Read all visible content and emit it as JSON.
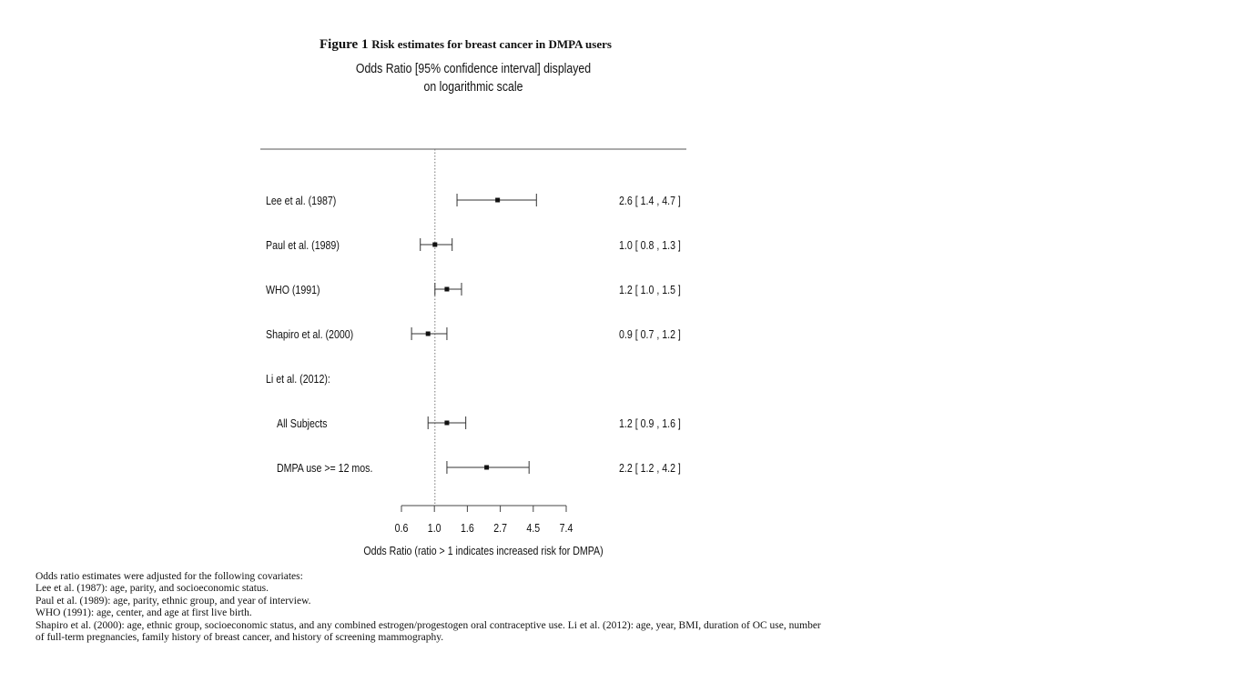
{
  "chart_data": {
    "type": "forest",
    "title_bold": "Figure 1",
    "title_rest": "Risk estimates for breast cancer in DMPA users",
    "subtitle_line1": "Odds Ratio [95% confidence interval] displayed",
    "subtitle_line2": "on logarithmic scale",
    "xlabel": "Odds Ratio (ratio > 1 indicates increased risk for DMPA)",
    "xscale": "log",
    "xlim": [
      0.6,
      7.4
    ],
    "reference_line": 1.0,
    "ticks": [
      0.6,
      1.0,
      1.6,
      2.7,
      4.5,
      7.4
    ],
    "tick_labels": [
      "0.6",
      "1.0",
      "1.6",
      "2.7",
      "4.5",
      "7.4"
    ],
    "rows": [
      {
        "label": "Lee et al. (1987)",
        "or": 2.6,
        "lo": 1.4,
        "hi": 4.7,
        "text": "2.6 [ 1.4 , 4.7 ]",
        "indent": false
      },
      {
        "label": "Paul et al. (1989)",
        "or": 1.0,
        "lo": 0.8,
        "hi": 1.3,
        "text": "1.0 [ 0.8 , 1.3 ]",
        "indent": false
      },
      {
        "label": "WHO (1991)",
        "or": 1.2,
        "lo": 1.0,
        "hi": 1.5,
        "text": "1.2 [ 1.0 , 1.5 ]",
        "indent": false
      },
      {
        "label": "Shapiro et al. (2000)",
        "or": 0.9,
        "lo": 0.7,
        "hi": 1.2,
        "text": "0.9 [ 0.7 , 1.2 ]",
        "indent": false
      },
      {
        "label": "Li et al. (2012):",
        "or": null,
        "lo": null,
        "hi": null,
        "text": "",
        "indent": false
      },
      {
        "label": "All Subjects",
        "or": 1.2,
        "lo": 0.9,
        "hi": 1.6,
        "text": "1.2 [ 0.9 , 1.6 ]",
        "indent": true
      },
      {
        "label": "DMPA use >= 12 mos.",
        "or": 2.2,
        "lo": 1.2,
        "hi": 4.2,
        "text": "2.2 [ 1.2 , 4.2 ]",
        "indent": true
      }
    ]
  },
  "notes": [
    "Odds ratio estimates were adjusted for the following covariates:",
    "Lee et al. (1987): age, parity, and socioeconomic status.",
    "Paul et al. (1989): age, parity, ethnic group, and year of interview.",
    "WHO (1991): age, center, and age at first live birth.",
    "Shapiro et al. (2000): age, ethnic group, socioeconomic status, and any combined estrogen/progestogen oral contraceptive use. Li et al. (2012): age, year, BMI, duration of OC use, number",
    "of full-term pregnancies, family history of breast cancer, and history of screening mammography."
  ]
}
